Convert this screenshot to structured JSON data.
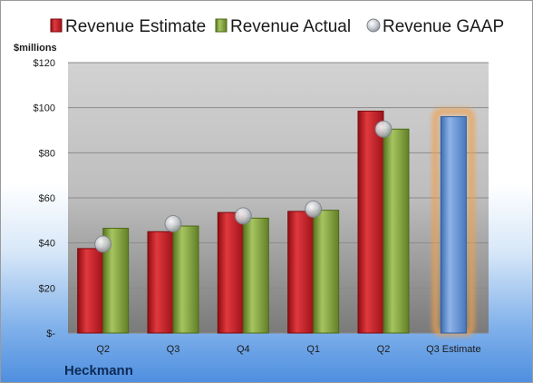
{
  "chart_data": {
    "type": "bar",
    "company": "Heckmann",
    "ylabel": "$millions",
    "ylim": [
      0,
      120
    ],
    "yticks": [
      0,
      20,
      40,
      60,
      80,
      100,
      120
    ],
    "ytick_labels": [
      "$-",
      "$20",
      "$40",
      "$60",
      "$80",
      "$100",
      "$120"
    ],
    "categories": [
      "Q2",
      "Q3",
      "Q4",
      "Q1",
      "Q2",
      "Q3 Estimate"
    ],
    "legend_position": "top",
    "grid": true,
    "series": [
      {
        "name": "Revenue Estimate",
        "kind": "bar",
        "color": "#c0161c",
        "values": [
          37.5,
          45,
          53.5,
          54,
          98.5,
          null
        ]
      },
      {
        "name": "Revenue Actual",
        "kind": "bar",
        "color": "#7da23a",
        "values": [
          46.5,
          47.5,
          51,
          54.5,
          90.5,
          null
        ]
      },
      {
        "name": "Revenue GAAP",
        "kind": "marker",
        "color": "#c8ccd2",
        "values": [
          39.5,
          48.5,
          52,
          55,
          90.5,
          null
        ]
      },
      {
        "name": "Q3 Estimate",
        "kind": "bar",
        "color": "#5b8fd2",
        "highlight": "#f0a04b",
        "values": [
          null,
          null,
          null,
          null,
          null,
          96
        ]
      }
    ]
  }
}
